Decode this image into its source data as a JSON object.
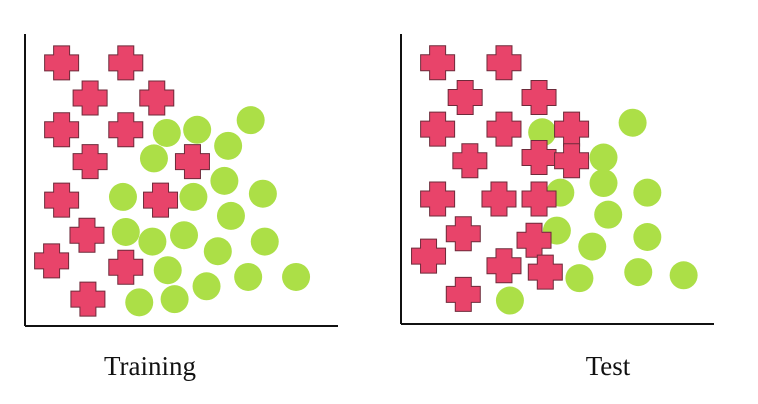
{
  "colors": {
    "cross": "#e8446a",
    "cross_stroke": "#6e2a3a",
    "circle": "#acdf47",
    "axis": "#111111"
  },
  "icons": {
    "cross_marker": "plus-cross-icon",
    "circle_marker": "circle-dot-icon"
  },
  "chart_data": [
    {
      "type": "scatter",
      "title": "Training",
      "xlabel": "",
      "ylabel": "",
      "xlim": [
        0,
        1
      ],
      "ylim": [
        0,
        1
      ],
      "grid": false,
      "series": [
        {
          "marker": "cross",
          "points": [
            [
              0.117,
              0.901
            ],
            [
              0.322,
              0.901
            ],
            [
              0.208,
              0.781
            ],
            [
              0.421,
              0.781
            ],
            [
              0.117,
              0.672
            ],
            [
              0.322,
              0.672
            ],
            [
              0.208,
              0.563
            ],
            [
              0.535,
              0.563
            ],
            [
              0.117,
              0.431
            ],
            [
              0.433,
              0.431
            ],
            [
              0.198,
              0.311
            ],
            [
              0.085,
              0.223
            ],
            [
              0.322,
              0.201
            ],
            [
              0.201,
              0.092
            ]
          ]
        },
        {
          "marker": "circle",
          "points": [
            [
              0.721,
              0.705
            ],
            [
              0.453,
              0.661
            ],
            [
              0.55,
              0.672
            ],
            [
              0.649,
              0.617
            ],
            [
              0.412,
              0.574
            ],
            [
              0.637,
              0.497
            ],
            [
              0.313,
              0.442
            ],
            [
              0.538,
              0.442
            ],
            [
              0.76,
              0.453
            ],
            [
              0.658,
              0.377
            ],
            [
              0.322,
              0.322
            ],
            [
              0.407,
              0.289
            ],
            [
              0.508,
              0.311
            ],
            [
              0.766,
              0.289
            ],
            [
              0.616,
              0.256
            ],
            [
              0.456,
              0.191
            ],
            [
              0.713,
              0.168
            ],
            [
              0.866,
              0.168
            ],
            [
              0.58,
              0.136
            ],
            [
              0.365,
              0.081
            ],
            [
              0.478,
              0.092
            ]
          ]
        }
      ]
    },
    {
      "type": "scatter",
      "title": "Test",
      "xlabel": "",
      "ylabel": "",
      "xlim": [
        0,
        1
      ],
      "ylim": [
        0,
        1
      ],
      "grid": false,
      "series": [
        {
          "marker": "cross",
          "points": [
            [
              0.117,
              0.901
            ],
            [
              0.329,
              0.901
            ],
            [
              0.205,
              0.781
            ],
            [
              0.441,
              0.781
            ],
            [
              0.117,
              0.672
            ],
            [
              0.329,
              0.672
            ],
            [
              0.545,
              0.672
            ],
            [
              0.22,
              0.563
            ],
            [
              0.441,
              0.574
            ],
            [
              0.545,
              0.563
            ],
            [
              0.117,
              0.431
            ],
            [
              0.313,
              0.431
            ],
            [
              0.441,
              0.431
            ],
            [
              0.199,
              0.311
            ],
            [
              0.425,
              0.289
            ],
            [
              0.088,
              0.234
            ],
            [
              0.329,
              0.201
            ],
            [
              0.461,
              0.179
            ],
            [
              0.199,
              0.102
            ]
          ]
        },
        {
          "marker": "circle",
          "points": [
            [
              0.451,
              0.661
            ],
            [
              0.74,
              0.694
            ],
            [
              0.647,
              0.574
            ],
            [
              0.509,
              0.453
            ],
            [
              0.647,
              0.486
            ],
            [
              0.787,
              0.453
            ],
            [
              0.662,
              0.377
            ],
            [
              0.498,
              0.322
            ],
            [
              0.787,
              0.3
            ],
            [
              0.611,
              0.267
            ],
            [
              0.758,
              0.179
            ],
            [
              0.57,
              0.158
            ],
            [
              0.903,
              0.168
            ],
            [
              0.348,
              0.081
            ]
          ]
        }
      ]
    }
  ]
}
